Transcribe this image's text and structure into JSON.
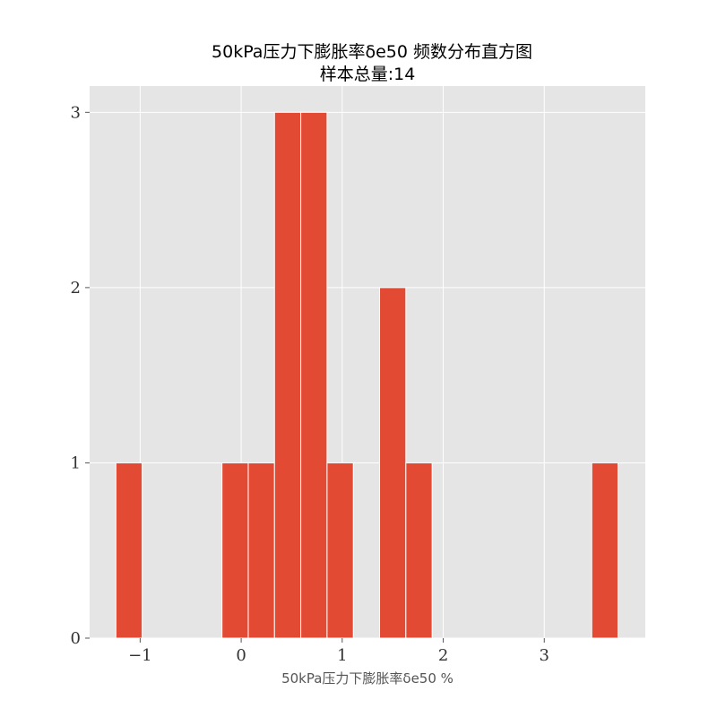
{
  "chart_data": {
    "type": "bar",
    "title": "50kPa压力下膨胀率δe50 频数分布直方图",
    "subtitle": "样本总量:14",
    "xlabel": "50kPa压力下膨胀率δe50 %",
    "ylabel": "",
    "xlim": [
      -1.5,
      4.0
    ],
    "ylim": [
      0,
      3.15
    ],
    "x_ticks": [
      -1,
      0,
      1,
      2,
      3
    ],
    "x_tick_labels": [
      "−1",
      "0",
      "1",
      "2",
      "3"
    ],
    "y_ticks": [
      0,
      1,
      2,
      3
    ],
    "y_tick_labels": [
      "0",
      "1",
      "2",
      "3"
    ],
    "grid": true,
    "bar_color": "#e24a33",
    "plot_background": "#e5e5e5",
    "grid_color": "#ffffff",
    "bins": [
      {
        "x0": -1.24,
        "x1": -0.98,
        "count": 1
      },
      {
        "x0": -0.19,
        "x1": 0.07,
        "count": 1
      },
      {
        "x0": 0.07,
        "x1": 0.33,
        "count": 1
      },
      {
        "x0": 0.33,
        "x1": 0.59,
        "count": 3
      },
      {
        "x0": 0.59,
        "x1": 0.85,
        "count": 3
      },
      {
        "x0": 0.85,
        "x1": 1.11,
        "count": 1
      },
      {
        "x0": 1.37,
        "x1": 1.63,
        "count": 2
      },
      {
        "x0": 1.63,
        "x1": 1.89,
        "count": 1
      },
      {
        "x0": 3.47,
        "x1": 3.73,
        "count": 1
      }
    ]
  }
}
